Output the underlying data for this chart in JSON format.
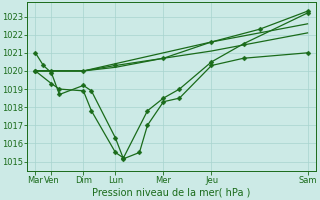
{
  "x_labels": [
    "Mar",
    "Ven",
    "Dim",
    "Lun",
    "Mer",
    "Jeu",
    "Sam"
  ],
  "x_ticks": [
    0,
    1,
    3,
    5,
    8,
    11,
    17
  ],
  "ylim": [
    1014.5,
    1023.8
  ],
  "yticks": [
    1015,
    1016,
    1017,
    1018,
    1019,
    1020,
    1021,
    1022,
    1023
  ],
  "line_color": "#1a6b1a",
  "bg_color": "#cceae6",
  "grid_color": "#a8d4ce",
  "axis_label": "Pression niveau de la mer( hPa )",
  "tick_fontsize": 6,
  "axis_fontsize": 7,
  "marker": "D",
  "markersize": 2.5,
  "lw": 0.9,
  "smooth_lines": [
    {
      "x": [
        0,
        1,
        3,
        5,
        8,
        11,
        17
      ],
      "y": [
        1020.0,
        1020.0,
        1020.0,
        1020.2,
        1020.7,
        1021.1,
        1022.1
      ]
    },
    {
      "x": [
        0,
        1,
        3,
        5,
        8,
        11,
        17
      ],
      "y": [
        1020.0,
        1020.0,
        1020.0,
        1020.4,
        1021.0,
        1021.6,
        1022.6
      ]
    }
  ],
  "jagged_lines": [
    {
      "x": [
        0,
        0.5,
        1,
        1.5,
        3,
        3.5,
        5,
        5.5,
        6.5,
        7,
        8,
        9,
        11,
        13,
        17
      ],
      "y": [
        1021.0,
        1020.3,
        1019.9,
        1018.7,
        1019.2,
        1018.9,
        1016.3,
        1015.15,
        1015.5,
        1017.0,
        1018.3,
        1018.5,
        1020.3,
        1020.7,
        1021.0
      ]
    },
    {
      "x": [
        0,
        1,
        1.5,
        3,
        3.5,
        5,
        5.5,
        7,
        8,
        9,
        11,
        13,
        17
      ],
      "y": [
        1020.0,
        1019.3,
        1019.0,
        1018.9,
        1017.8,
        1015.5,
        1015.2,
        1017.8,
        1018.5,
        1019.0,
        1020.5,
        1021.5,
        1023.2
      ]
    },
    {
      "x": [
        0,
        1,
        3,
        5,
        8,
        11,
        14,
        17
      ],
      "y": [
        1020.0,
        1020.0,
        1020.0,
        1020.3,
        1020.7,
        1021.6,
        1022.3,
        1023.3
      ]
    }
  ]
}
